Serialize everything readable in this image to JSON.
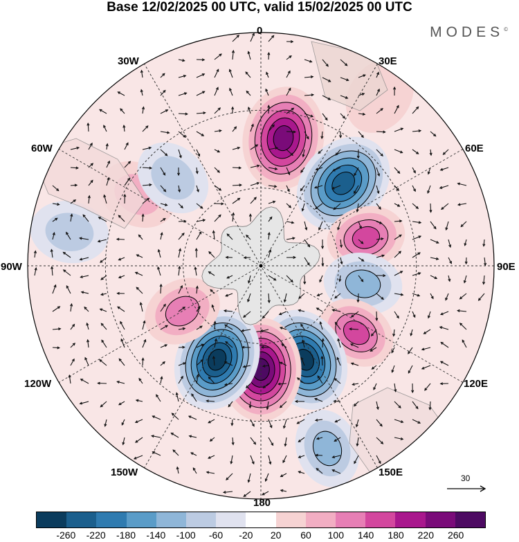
{
  "title": "Base 12/02/2025 00 UTC, valid 15/02/2025 00 UTC",
  "brand": "MODES",
  "brand_mark": "©",
  "longitudes": {
    "top": "0",
    "lon30e": "30E",
    "lon60e": "60E",
    "lon90e": "90E",
    "lon120e": "120E",
    "lon150e": "150E",
    "bottom": "180",
    "lon150w": "150W",
    "lon120w": "120W",
    "lon90w": "90W",
    "lon60w": "60W",
    "lon30w": "30W"
  },
  "vector_scale": {
    "label": "30"
  },
  "colorbar": {
    "colors": [
      "#0b3c5d",
      "#1b5f8d",
      "#2f7bb0",
      "#5a9cc8",
      "#8fb6d8",
      "#bccbe2",
      "#e0e2ef",
      "#ffffff",
      "#f6d3d3",
      "#f2aec3",
      "#e77fb5",
      "#d3479e",
      "#a9178d",
      "#7a0b79",
      "#4d0a62"
    ],
    "ticks": [
      "-260",
      "-220",
      "-180",
      "-140",
      "-100",
      "-60",
      "-20",
      "20",
      "60",
      "100",
      "140",
      "180",
      "220",
      "260"
    ]
  },
  "anomaly_cells": [
    {
      "lon": 10,
      "lat": -40,
      "value": 230
    },
    {
      "lon": 45,
      "lat": -45,
      "value": -220
    },
    {
      "lon": 75,
      "lat": -48,
      "value": 170
    },
    {
      "lon": 100,
      "lat": -50,
      "value": -120
    },
    {
      "lon": 125,
      "lat": -45,
      "value": 150
    },
    {
      "lon": 155,
      "lat": -50,
      "value": -265
    },
    {
      "lon": 180,
      "lat": -50,
      "value": 265
    },
    {
      "lon": -155,
      "lat": -50,
      "value": -265
    },
    {
      "lon": -120,
      "lat": -55,
      "value": 120
    },
    {
      "lon": -60,
      "lat": -35,
      "value": 60
    },
    {
      "lon": -45,
      "lat": -42,
      "value": -90
    },
    {
      "lon": -80,
      "lat": -15,
      "value": -60
    },
    {
      "lon": 160,
      "lat": -15,
      "value": -100
    },
    {
      "lon": 35,
      "lat": -10,
      "value": 40
    }
  ]
}
